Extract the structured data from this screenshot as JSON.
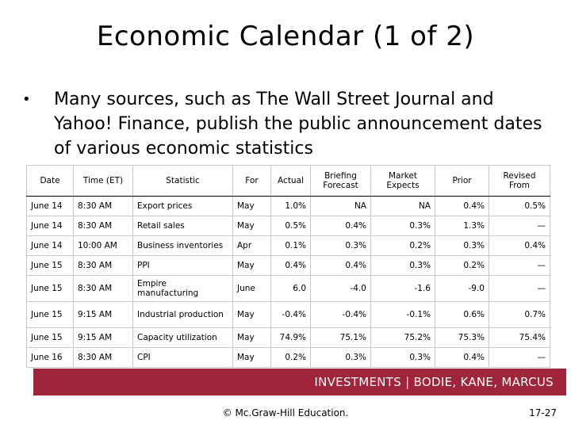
{
  "slide": {
    "title": "Economic Calendar (1 of 2)",
    "bullet_symbol": "•",
    "bullet_text": "Many sources, such as The Wall Street Journal and Yahoo! Finance, publish the public announcement dates of various economic statistics"
  },
  "table": {
    "headers": [
      "Date",
      "Time (ET)",
      "Statistic",
      "For",
      "Actual",
      "Briefing Forecast",
      "Market Expects",
      "Prior",
      "Revised From"
    ],
    "rows": [
      [
        "June 14",
        "8:30 AM",
        "Export prices",
        "May",
        "1.0%",
        "NA",
        "NA",
        "0.4%",
        "0.5%"
      ],
      [
        "June 14",
        "8:30 AM",
        "Retail sales",
        "May",
        "0.5%",
        "0.4%",
        "0.3%",
        "1.3%",
        "—"
      ],
      [
        "June 14",
        "10:00 AM",
        "Business inventories",
        "Apr",
        "0.1%",
        "0.3%",
        "0.2%",
        "0.3%",
        "0.4%"
      ],
      [
        "June 15",
        "8:30 AM",
        "PPI",
        "May",
        "0.4%",
        "0.4%",
        "0.3%",
        "0.2%",
        "—"
      ],
      [
        "June 15",
        "8:30 AM",
        "Empire manufacturing",
        "June",
        "6.0",
        "-4.0",
        "-1.6",
        "-9.0",
        "—"
      ],
      [
        "June 15",
        "9:15 AM",
        "Industrial production",
        "May",
        "-0.4%",
        "-0.4%",
        "-0.1%",
        "0.6%",
        "0.7%"
      ],
      [
        "June 15",
        "9:15 AM",
        "Capacity utilization",
        "May",
        "74.9%",
        "75.1%",
        "75.2%",
        "75.3%",
        "75.4%"
      ],
      [
        "June 16",
        "8:30 AM",
        "CPI",
        "May",
        "0.2%",
        "0.3%",
        "0.3%",
        "0.4%",
        "—"
      ]
    ]
  },
  "footer": {
    "banner": "INVESTMENTS | BODIE, KANE, MARCUS",
    "copyright": "© Mc.Graw-Hill Education.",
    "page_number": "17-27"
  },
  "colors": {
    "banner_background": "#a0243a",
    "banner_text": "#ffffff"
  }
}
